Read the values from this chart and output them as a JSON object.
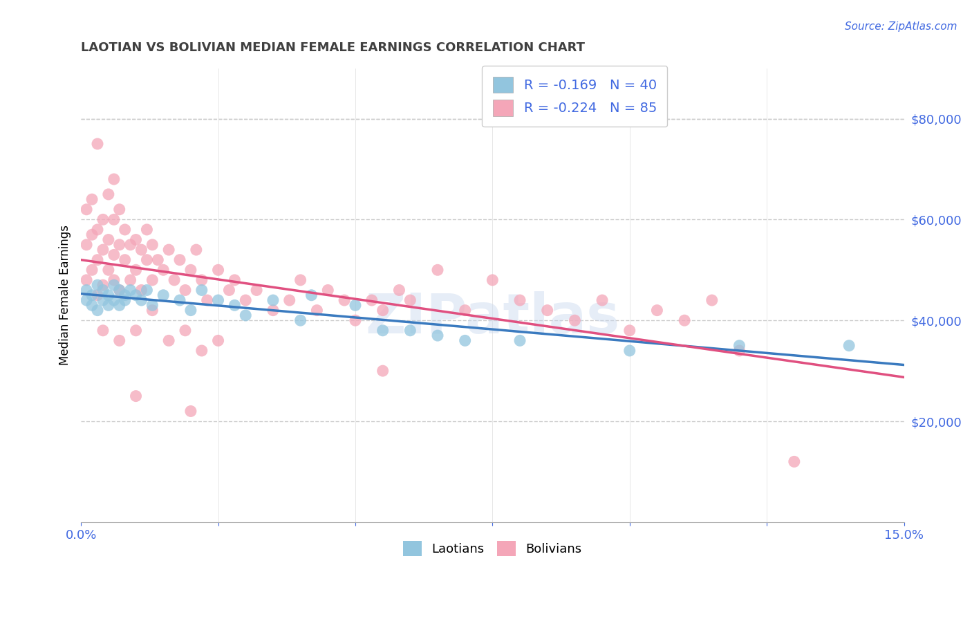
{
  "title": "LAOTIAN VS BOLIVIAN MEDIAN FEMALE EARNINGS CORRELATION CHART",
  "source": "Source: ZipAtlas.com",
  "ylabel": "Median Female Earnings",
  "xlim": [
    0,
    0.15
  ],
  "ylim": [
    0,
    90000
  ],
  "ytick_vals": [
    20000,
    40000,
    60000,
    80000
  ],
  "ytick_labels": [
    "$20,000",
    "$40,000",
    "$60,000",
    "$80,000"
  ],
  "xtick_vals": [
    0.0,
    0.025,
    0.05,
    0.075,
    0.1,
    0.125,
    0.15
  ],
  "xtick_labels": [
    "0.0%",
    "",
    "",
    "",
    "",
    "",
    "15.0%"
  ],
  "laotian_R": -0.169,
  "laotian_N": 40,
  "bolivian_R": -0.224,
  "bolivian_N": 85,
  "blue_color": "#92c5de",
  "pink_color": "#f4a6b8",
  "blue_line_color": "#3a7abf",
  "pink_line_color": "#e05080",
  "title_color": "#404040",
  "axis_color": "#4169e1",
  "watermark": "ZIPatlas",
  "laotian_x": [
    0.001,
    0.001,
    0.002,
    0.002,
    0.003,
    0.003,
    0.004,
    0.004,
    0.005,
    0.005,
    0.006,
    0.006,
    0.007,
    0.007,
    0.008,
    0.008,
    0.009,
    0.01,
    0.011,
    0.012,
    0.013,
    0.015,
    0.018,
    0.022,
    0.028,
    0.035,
    0.042,
    0.05,
    0.06,
    0.07,
    0.02,
    0.025,
    0.03,
    0.04,
    0.055,
    0.065,
    0.08,
    0.1,
    0.12,
    0.14
  ],
  "laotian_y": [
    46000,
    44000,
    45000,
    43000,
    47000,
    42000,
    46000,
    44000,
    45000,
    43000,
    47000,
    44000,
    46000,
    43000,
    45000,
    44000,
    46000,
    45000,
    44000,
    46000,
    43000,
    45000,
    44000,
    46000,
    43000,
    44000,
    45000,
    43000,
    38000,
    36000,
    42000,
    44000,
    41000,
    40000,
    38000,
    37000,
    36000,
    34000,
    35000,
    35000
  ],
  "bolivian_x": [
    0.001,
    0.001,
    0.001,
    0.002,
    0.002,
    0.002,
    0.003,
    0.003,
    0.003,
    0.004,
    0.004,
    0.004,
    0.005,
    0.005,
    0.005,
    0.006,
    0.006,
    0.006,
    0.007,
    0.007,
    0.007,
    0.008,
    0.008,
    0.009,
    0.009,
    0.01,
    0.01,
    0.011,
    0.011,
    0.012,
    0.012,
    0.013,
    0.013,
    0.014,
    0.015,
    0.016,
    0.017,
    0.018,
    0.019,
    0.02,
    0.021,
    0.022,
    0.023,
    0.025,
    0.027,
    0.028,
    0.03,
    0.032,
    0.035,
    0.038,
    0.04,
    0.043,
    0.045,
    0.048,
    0.05,
    0.053,
    0.055,
    0.058,
    0.06,
    0.065,
    0.07,
    0.075,
    0.08,
    0.085,
    0.09,
    0.095,
    0.1,
    0.105,
    0.11,
    0.115,
    0.004,
    0.007,
    0.01,
    0.013,
    0.016,
    0.019,
    0.022,
    0.025,
    0.055,
    0.12,
    0.003,
    0.006,
    0.01,
    0.02,
    0.13
  ],
  "bolivian_y": [
    48000,
    55000,
    62000,
    50000,
    57000,
    64000,
    52000,
    58000,
    45000,
    54000,
    60000,
    47000,
    56000,
    50000,
    65000,
    53000,
    60000,
    48000,
    55000,
    62000,
    46000,
    52000,
    58000,
    55000,
    48000,
    56000,
    50000,
    54000,
    46000,
    58000,
    52000,
    55000,
    48000,
    52000,
    50000,
    54000,
    48000,
    52000,
    46000,
    50000,
    54000,
    48000,
    44000,
    50000,
    46000,
    48000,
    44000,
    46000,
    42000,
    44000,
    48000,
    42000,
    46000,
    44000,
    40000,
    44000,
    42000,
    46000,
    44000,
    50000,
    42000,
    48000,
    44000,
    42000,
    40000,
    44000,
    38000,
    42000,
    40000,
    44000,
    38000,
    36000,
    38000,
    42000,
    36000,
    38000,
    34000,
    36000,
    30000,
    34000,
    75000,
    68000,
    25000,
    22000,
    12000
  ]
}
